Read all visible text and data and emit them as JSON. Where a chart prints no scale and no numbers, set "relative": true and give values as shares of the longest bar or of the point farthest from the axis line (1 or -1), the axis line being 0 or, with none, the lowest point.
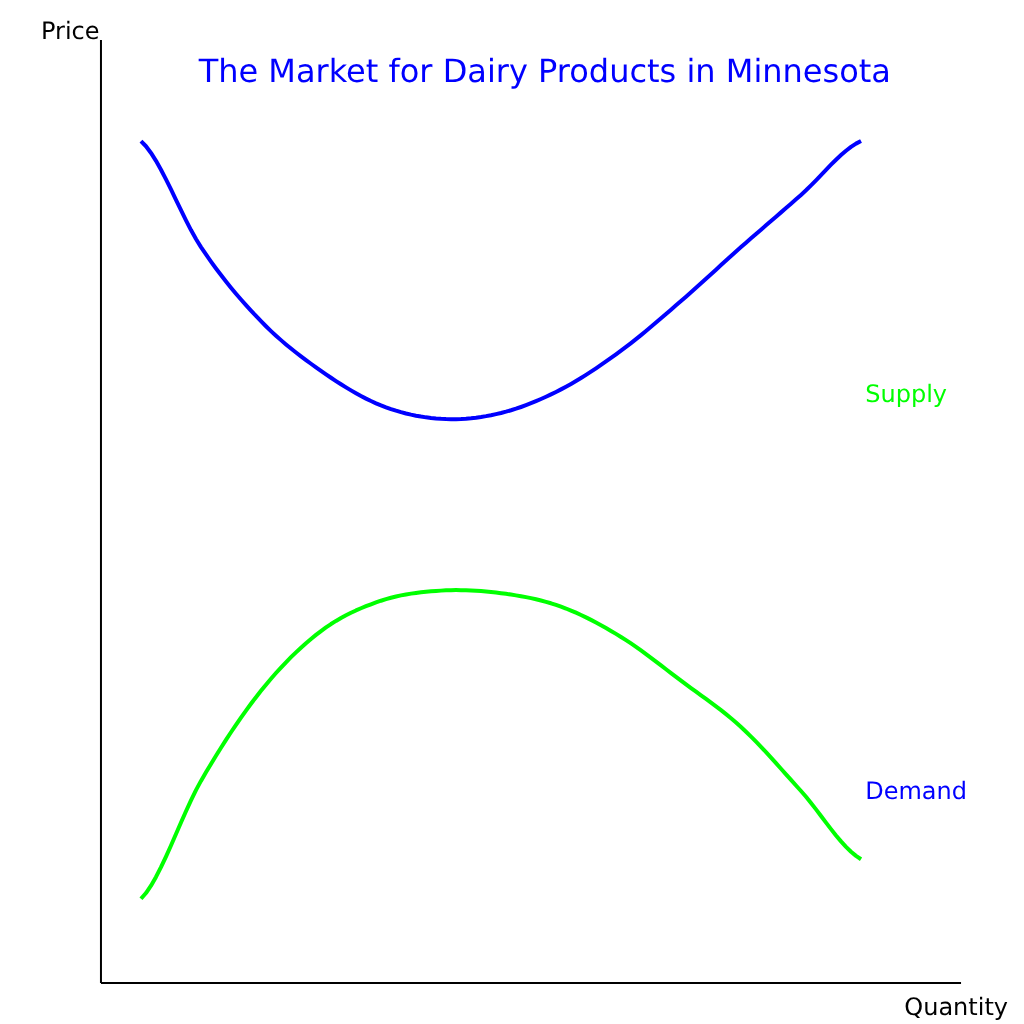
{
  "chart_data": {
    "type": "line",
    "title": "The Market for Dairy Products in Minnesota",
    "xlabel": "Quantity",
    "ylabel": "Price",
    "relative": true,
    "grid": false,
    "legend": false,
    "categories": [
      null,
      null,
      null,
      null,
      null,
      null,
      null,
      null,
      null,
      null,
      null,
      null,
      null
    ],
    "series": [
      {
        "name": "Demand",
        "color": "#0000ff",
        "values": [
          1,
          0.874,
          0.786,
          0.727,
          0.686,
          0.67,
          0.677,
          0.705,
          0.751,
          0.81,
          0.874,
          0.936,
          1
        ]
      },
      {
        "name": "Supply",
        "color": "#00ff00",
        "values": [
          0.1,
          0.24,
          0.347,
          0.418,
          0.454,
          0.466,
          0.463,
          0.447,
          0.411,
          0.359,
          0.304,
          0.228,
          0.147
        ]
      }
    ]
  }
}
